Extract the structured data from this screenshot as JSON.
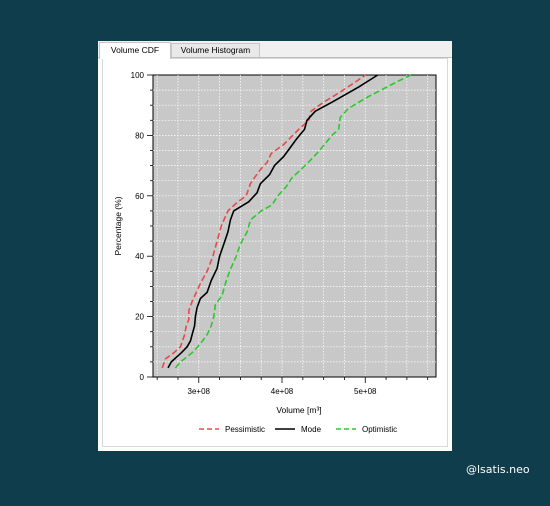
{
  "tabs": [
    {
      "label": "Volume CDF",
      "active": true
    },
    {
      "label": "Volume Histogram",
      "active": false
    }
  ],
  "chart_data": {
    "type": "line",
    "title": "",
    "xlabel": "Volume [m³]",
    "ylabel": "Percentage (%)",
    "xlim": [
      245000000,
      585000000
    ],
    "ylim": [
      0,
      100
    ],
    "x_ticks": [
      300000000,
      400000000,
      500000000
    ],
    "x_tick_labels": [
      "3e+08",
      "4e+08",
      "5e+08"
    ],
    "y_ticks": [
      0,
      20,
      40,
      60,
      80,
      100
    ],
    "y_tick_labels": [
      "0",
      "20",
      "40",
      "60",
      "80",
      "100"
    ],
    "grid": true,
    "plot_background": "#c8c8c8",
    "legend_position": "bottom",
    "series": [
      {
        "name": "Pessimistic",
        "color": "#e84a4a",
        "dash": "dashed",
        "points": [
          [
            256000000,
            3
          ],
          [
            260000000,
            6
          ],
          [
            270000000,
            8
          ],
          [
            278000000,
            10
          ],
          [
            283000000,
            14
          ],
          [
            285000000,
            17
          ],
          [
            288000000,
            19
          ],
          [
            288000000,
            22
          ],
          [
            292000000,
            25
          ],
          [
            297000000,
            28
          ],
          [
            302000000,
            31
          ],
          [
            310000000,
            35
          ],
          [
            317000000,
            40
          ],
          [
            322000000,
            45
          ],
          [
            327000000,
            50
          ],
          [
            335000000,
            55
          ],
          [
            347000000,
            58
          ],
          [
            357000000,
            60
          ],
          [
            362000000,
            64
          ],
          [
            367000000,
            66
          ],
          [
            375000000,
            69
          ],
          [
            382000000,
            71
          ],
          [
            387000000,
            74
          ],
          [
            402000000,
            77
          ],
          [
            420000000,
            82
          ],
          [
            432000000,
            85
          ],
          [
            435000000,
            88
          ],
          [
            450000000,
            91
          ],
          [
            468000000,
            94
          ],
          [
            490000000,
            98
          ],
          [
            500000000,
            100
          ]
        ]
      },
      {
        "name": "Mode",
        "color": "#000000",
        "dash": "solid",
        "points": [
          [
            263000000,
            3
          ],
          [
            267000000,
            5
          ],
          [
            279000000,
            8
          ],
          [
            286000000,
            10
          ],
          [
            290000000,
            12
          ],
          [
            292000000,
            14
          ],
          [
            295000000,
            17
          ],
          [
            296000000,
            20
          ],
          [
            298000000,
            23
          ],
          [
            302000000,
            26
          ],
          [
            310000000,
            28
          ],
          [
            315000000,
            32
          ],
          [
            322000000,
            36
          ],
          [
            325000000,
            40
          ],
          [
            330000000,
            44
          ],
          [
            335000000,
            48
          ],
          [
            338000000,
            52
          ],
          [
            342000000,
            55
          ],
          [
            360000000,
            58
          ],
          [
            370000000,
            61
          ],
          [
            374000000,
            64
          ],
          [
            385000000,
            67
          ],
          [
            391000000,
            70
          ],
          [
            402000000,
            73
          ],
          [
            410000000,
            76
          ],
          [
            418000000,
            79
          ],
          [
            427000000,
            82
          ],
          [
            430000000,
            85
          ],
          [
            440000000,
            88
          ],
          [
            460000000,
            91
          ],
          [
            492000000,
            96
          ],
          [
            515000000,
            100
          ]
        ]
      },
      {
        "name": "Optimistic",
        "color": "#2ec82e",
        "dash": "dashed",
        "points": [
          [
            272000000,
            3
          ],
          [
            278000000,
            5
          ],
          [
            292000000,
            8
          ],
          [
            302000000,
            11
          ],
          [
            310000000,
            14
          ],
          [
            315000000,
            17
          ],
          [
            318000000,
            20
          ],
          [
            320000000,
            24
          ],
          [
            328000000,
            27
          ],
          [
            332000000,
            31
          ],
          [
            337000000,
            35
          ],
          [
            345000000,
            40
          ],
          [
            350000000,
            44
          ],
          [
            358000000,
            48
          ],
          [
            362000000,
            52
          ],
          [
            375000000,
            55
          ],
          [
            388000000,
            57
          ],
          [
            395000000,
            60
          ],
          [
            405000000,
            63
          ],
          [
            412000000,
            66
          ],
          [
            424000000,
            69
          ],
          [
            435000000,
            72
          ],
          [
            445000000,
            75
          ],
          [
            460000000,
            80
          ],
          [
            468000000,
            82
          ],
          [
            470000000,
            86
          ],
          [
            480000000,
            89
          ],
          [
            505000000,
            93
          ],
          [
            540000000,
            98
          ],
          [
            555000000,
            100
          ]
        ]
      }
    ]
  },
  "watermark": "@lsatis.neo"
}
